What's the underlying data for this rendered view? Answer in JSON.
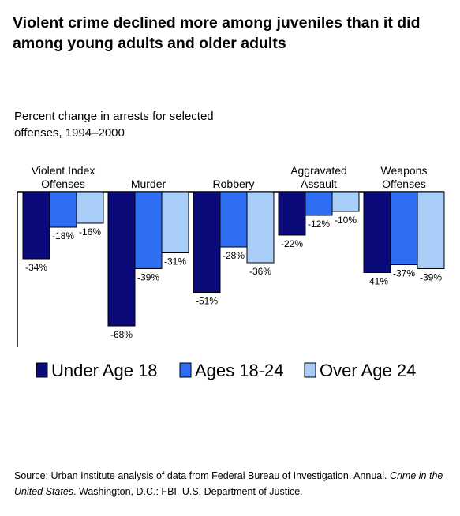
{
  "title": "Violent crime declined more among juveniles than it did among young adults and older adults",
  "source": {
    "prefix": "Source: Urban Institute analysis of data from Federal Bureau of Investigation. Annual. ",
    "publication": "Crime in the United States",
    "suffix": ". Washington, D.C.: FBI, U.S. Department of Justice."
  },
  "chart_data": {
    "type": "bar",
    "title": "Percent change in arrests for selected offenses, 1994–2000",
    "categories": [
      [
        "Violent Index",
        "Offenses"
      ],
      [
        "Murder"
      ],
      [
        "Robbery"
      ],
      [
        "Aggravated",
        "Assault"
      ],
      [
        "Weapons",
        "Offenses"
      ]
    ],
    "series": [
      {
        "name": "Under Age 18",
        "values": [
          -34,
          -68,
          -51,
          -22,
          -41
        ],
        "color": "#0a0a7a"
      },
      {
        "name": "Ages 18-24",
        "values": [
          -18,
          -39,
          -28,
          -12,
          -37
        ],
        "color": "#2e6ef0"
      },
      {
        "name": "Over Age 24",
        "values": [
          -16,
          -31,
          -36,
          -10,
          -39
        ],
        "color": "#a8cdf7"
      }
    ],
    "value_suffix": "%",
    "ylim": [
      -75,
      0
    ],
    "grid": false,
    "legend_position": "bottom"
  }
}
